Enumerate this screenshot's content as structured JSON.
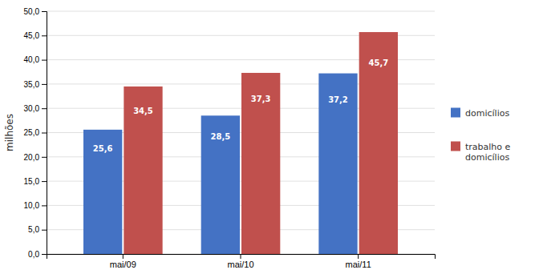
{
  "chart_data": {
    "type": "bar",
    "categories": [
      "mai/09",
      "mai/10",
      "mai/11"
    ],
    "series": [
      {
        "name": "domicílios",
        "color": "#4472C4",
        "values": [
          25.6,
          28.5,
          37.2
        ],
        "value_labels": [
          "25,6",
          "28,5",
          "37,2"
        ]
      },
      {
        "name": "trabalho e\ndomicílios",
        "color": "#C0504D",
        "values": [
          34.5,
          37.3,
          45.7
        ],
        "value_labels": [
          "34,5",
          "37,3",
          "45,7"
        ]
      }
    ],
    "ylabel": "milhões",
    "ylim": [
      0,
      50
    ],
    "yticks": [
      {
        "value": 0.0,
        "label": "0,0"
      },
      {
        "value": 5.0,
        "label": "5,0"
      },
      {
        "value": 10.0,
        "label": "10,0"
      },
      {
        "value": 15.0,
        "label": "15,0"
      },
      {
        "value": 20.0,
        "label": "20,0"
      },
      {
        "value": 25.0,
        "label": "25,0"
      },
      {
        "value": 30.0,
        "label": "30,0"
      },
      {
        "value": 35.0,
        "label": "35,0"
      },
      {
        "value": 40.0,
        "label": "40,0"
      },
      {
        "value": 45.0,
        "label": "45,0"
      },
      {
        "value": 50.0,
        "label": "50,0"
      }
    ],
    "grid": true,
    "legend": "right",
    "data_labels": true
  }
}
